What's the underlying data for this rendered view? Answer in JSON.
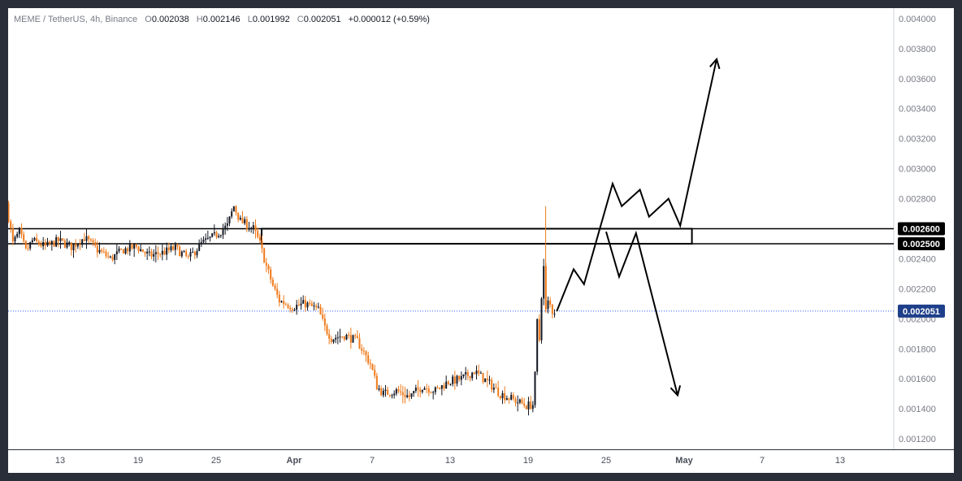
{
  "legend": {
    "symbol": "MEME / TetherUS",
    "interval": "4h",
    "exchange": "Binance",
    "open_label": "O",
    "open": "0.002038",
    "high_label": "H",
    "high": "0.002146",
    "low_label": "L",
    "low": "0.001992",
    "close_label": "C",
    "close": "0.002051",
    "change": "+0.000012 (+0.59%)"
  },
  "chart_data": {
    "type": "candlestick",
    "y_axis": {
      "range": [
        0.00113,
        0.00407
      ],
      "ticks": [
        "0.004000",
        "0.003800",
        "0.003600",
        "0.003400",
        "0.003200",
        "0.003000",
        "0.002800",
        "0.002600",
        "0.002400",
        "0.002200",
        "0.002000",
        "0.001800",
        "0.001600",
        "0.001400",
        "0.001200"
      ],
      "tick_values": [
        0.004,
        0.0038,
        0.0036,
        0.0034,
        0.0032,
        0.003,
        0.0028,
        0.0026,
        0.0024,
        0.0022,
        0.002,
        0.0018,
        0.0016,
        0.0014,
        0.0012
      ]
    },
    "x_axis": {
      "range_days": [
        -3,
        45
      ],
      "ticks": [
        {
          "label": "13",
          "day": 1,
          "bold": false
        },
        {
          "label": "19",
          "day": 7,
          "bold": false
        },
        {
          "label": "25",
          "day": 13,
          "bold": false
        },
        {
          "label": "Apr",
          "day": 19,
          "bold": true
        },
        {
          "label": "7",
          "day": 25,
          "bold": false
        },
        {
          "label": "13",
          "day": 31,
          "bold": false
        },
        {
          "label": "19",
          "day": 37,
          "bold": false
        },
        {
          "label": "25",
          "day": 43,
          "bold": false
        },
        {
          "label": "May",
          "day": 49,
          "bold": true
        },
        {
          "label": "7",
          "day": 55,
          "bold": false
        },
        {
          "label": "13",
          "day": 61,
          "bold": false
        }
      ]
    },
    "price_path": [
      [
        -3.0,
        0.00277
      ],
      [
        -2.5,
        0.0025
      ],
      [
        -2.0,
        0.00258
      ],
      [
        -1.5,
        0.00245
      ],
      [
        -1.0,
        0.00252
      ],
      [
        0,
        0.00248
      ],
      [
        1,
        0.00252
      ],
      [
        2,
        0.00248
      ],
      [
        3,
        0.00254
      ],
      [
        4,
        0.00246
      ],
      [
        5,
        0.0024
      ],
      [
        6,
        0.00246
      ],
      [
        7,
        0.00248
      ],
      [
        8,
        0.00242
      ],
      [
        9,
        0.00244
      ],
      [
        10,
        0.00247
      ],
      [
        11,
        0.0024
      ],
      [
        12,
        0.0025
      ],
      [
        13,
        0.00255
      ],
      [
        14,
        0.00262
      ],
      [
        14.5,
        0.00275
      ],
      [
        15,
        0.00265
      ],
      [
        16,
        0.0026
      ],
      [
        16.5,
        0.0025
      ],
      [
        17,
        0.00235
      ],
      [
        17.5,
        0.00222
      ],
      [
        18,
        0.00212
      ],
      [
        19,
        0.00208
      ],
      [
        20,
        0.0021
      ],
      [
        21,
        0.00206
      ],
      [
        21.5,
        0.00194
      ],
      [
        22,
        0.00187
      ],
      [
        23,
        0.00189
      ],
      [
        24,
        0.00185
      ],
      [
        25,
        0.0017
      ],
      [
        25.5,
        0.00155
      ],
      [
        26,
        0.0015
      ],
      [
        27,
        0.00152
      ],
      [
        28,
        0.00148
      ],
      [
        29,
        0.00155
      ],
      [
        30,
        0.00152
      ],
      [
        31,
        0.00158
      ],
      [
        32,
        0.0016
      ],
      [
        33,
        0.00165
      ],
      [
        34,
        0.00158
      ],
      [
        35,
        0.0015
      ],
      [
        36,
        0.00146
      ],
      [
        37,
        0.00142
      ],
      [
        37.6,
        0.00143
      ],
      [
        37.8,
        0.002
      ],
      [
        38.0,
        0.00186
      ],
      [
        38.3,
        0.0024
      ],
      [
        38.5,
        0.00205
      ],
      [
        38.7,
        0.00212
      ],
      [
        39.0,
        0.00205
      ]
    ],
    "price_lines": [
      {
        "name": "current",
        "value": 0.002051,
        "label": "0.002051",
        "style": "dotted",
        "color": "#2962ff"
      }
    ],
    "horizontal_levels": [
      {
        "value": 0.0026,
        "label": "0.002600"
      },
      {
        "value": 0.0025,
        "label": "0.002500"
      }
    ],
    "zone": {
      "start_day": 16.5,
      "end_day": 49.6,
      "top": 0.0026,
      "bottom": 0.0025
    },
    "scenario_up": [
      [
        39.2,
        0.00205
      ],
      [
        40.5,
        0.00233
      ],
      [
        41.3,
        0.00223
      ],
      [
        43.5,
        0.0029
      ],
      [
        44.2,
        0.00275
      ],
      [
        45.6,
        0.00286
      ],
      [
        46.3,
        0.00268
      ],
      [
        47.8,
        0.0028
      ],
      [
        48.7,
        0.00262
      ],
      [
        51.5,
        0.00373
      ]
    ],
    "scenario_down": [
      [
        43,
        0.00258
      ],
      [
        44,
        0.00228
      ],
      [
        45.3,
        0.00257
      ],
      [
        48.5,
        0.00149
      ]
    ]
  }
}
